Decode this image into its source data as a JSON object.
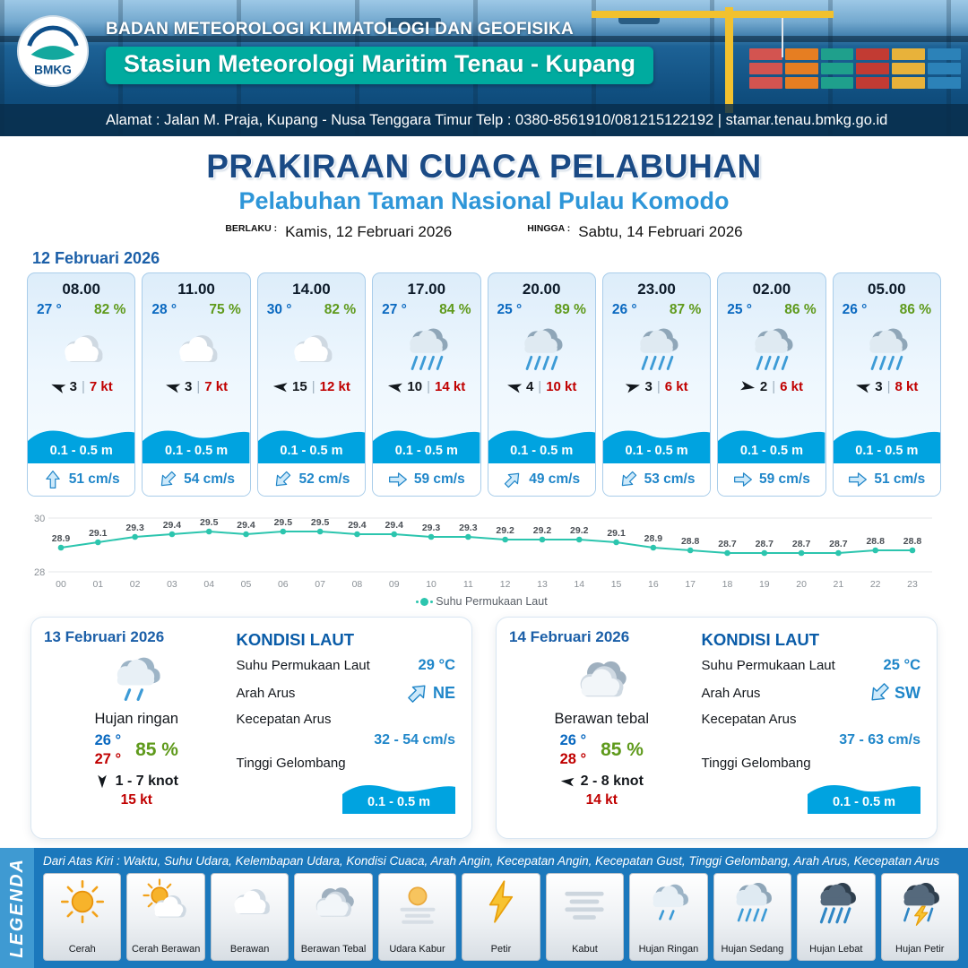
{
  "header": {
    "logo_text": "BMKG",
    "org": "BADAN METEOROLOGI KLIMATOLOGI DAN GEOFISIKA",
    "station": "Stasiun Meteorologi Maritim Tenau - Kupang",
    "address": "Alamat : Jalan M. Praja, Kupang - Nusa Tenggara Timur Telp : 0380-8561910/081215122192  | stamar.tenau.bmkg.go.id"
  },
  "title": {
    "main": "PRAKIRAAN CUACA PELABUHAN",
    "subtitle": "Pelabuhan Taman Nasional Pulau Komodo",
    "valid_from_label": "BERLAKU :",
    "valid_from": "Kamis, 12 Februari 2026",
    "valid_to_label": "HINGGA :",
    "valid_to": "Sabtu, 14 Februari 2026"
  },
  "forecast": {
    "date": "12 Februari 2026",
    "separator": "|",
    "cards": [
      {
        "time": "08.00",
        "temp": "27 °",
        "humidity": "82 %",
        "icon": "berawan",
        "wind_dir_deg": 200,
        "wind_speed": "3",
        "gust": "7 kt",
        "wave": "0.1 - 0.5 m",
        "current_dir_deg": -90,
        "current_speed": "51 cm/s"
      },
      {
        "time": "11.00",
        "temp": "28 °",
        "humidity": "75 %",
        "icon": "berawan",
        "wind_dir_deg": 195,
        "wind_speed": "3",
        "gust": "7 kt",
        "wave": "0.1 - 0.5 m",
        "current_dir_deg": 135,
        "current_speed": "54 cm/s"
      },
      {
        "time": "14.00",
        "temp": "30 °",
        "humidity": "82 %",
        "icon": "berawan",
        "wind_dir_deg": 185,
        "wind_speed": "15",
        "gust": "12 kt",
        "wave": "0.1 - 0.5 m",
        "current_dir_deg": 135,
        "current_speed": "52 cm/s"
      },
      {
        "time": "17.00",
        "temp": "27 °",
        "humidity": "84 %",
        "icon": "hujan-sedang",
        "wind_dir_deg": 190,
        "wind_speed": "10",
        "gust": "14 kt",
        "wave": "0.1 - 0.5 m",
        "current_dir_deg": 0,
        "current_speed": "59 cm/s"
      },
      {
        "time": "20.00",
        "temp": "25 °",
        "humidity": "89 %",
        "icon": "hujan-sedang",
        "wind_dir_deg": 195,
        "wind_speed": "4",
        "gust": "10 kt",
        "wave": "0.1 - 0.5 m",
        "current_dir_deg": -45,
        "current_speed": "49 cm/s"
      },
      {
        "time": "23.00",
        "temp": "26 °",
        "humidity": "87 %",
        "icon": "hujan-sedang",
        "wind_dir_deg": -15,
        "wind_speed": "3",
        "gust": "6 kt",
        "wave": "0.1 - 0.5 m",
        "current_dir_deg": 135,
        "current_speed": "53 cm/s"
      },
      {
        "time": "02.00",
        "temp": "25 °",
        "humidity": "86 %",
        "icon": "hujan-sedang",
        "wind_dir_deg": 10,
        "wind_speed": "2",
        "gust": "6 kt",
        "wave": "0.1 - 0.5 m",
        "current_dir_deg": 0,
        "current_speed": "59 cm/s"
      },
      {
        "time": "05.00",
        "temp": "26 °",
        "humidity": "86 %",
        "icon": "hujan-sedang",
        "wind_dir_deg": 195,
        "wind_speed": "3",
        "gust": "8 kt",
        "wave": "0.1 - 0.5 m",
        "current_dir_deg": 0,
        "current_speed": "51 cm/s"
      }
    ]
  },
  "chart_data": {
    "type": "line",
    "title": "",
    "xlabel": "",
    "ylabel": "",
    "x": [
      "00",
      "01",
      "02",
      "03",
      "04",
      "05",
      "06",
      "07",
      "08",
      "09",
      "10",
      "11",
      "12",
      "13",
      "14",
      "15",
      "16",
      "17",
      "18",
      "19",
      "20",
      "21",
      "22",
      "23"
    ],
    "series": [
      {
        "name": "Suhu Permukaan Laut",
        "values": [
          28.9,
          29.1,
          29.3,
          29.4,
          29.5,
          29.4,
          29.5,
          29.5,
          29.4,
          29.4,
          29.3,
          29.3,
          29.2,
          29.2,
          29.2,
          29.1,
          28.9,
          28.8,
          28.7,
          28.7,
          28.7,
          28.7,
          28.8,
          28.8
        ]
      }
    ],
    "ylim": [
      28,
      30
    ],
    "yticks": [
      28,
      30
    ],
    "line_color": "#2cc5ae",
    "legend_position": "bottom",
    "grid": true
  },
  "sea_labels": {
    "title": "KONDISI LAUT",
    "sst": "Suhu Permukaan Laut",
    "direction": "Arah Arus",
    "speed": "Kecepatan Arus",
    "wave": "Tinggi Gelombang"
  },
  "days": [
    {
      "date": "13 Februari 2026",
      "icon": "hujan-ringan",
      "condition": "Hujan ringan",
      "temp_min": "26 °",
      "temp_max": "27 °",
      "humidity": "85 %",
      "wind_dir_deg": 90,
      "wind_range": "1 - 7 knot",
      "gust": "15 kt",
      "sea": {
        "sst": "29 °C",
        "current_dir": "NE",
        "current_dir_deg": -45,
        "current_speed": "32 - 54 cm/s",
        "wave": "0.1 - 0.5 m"
      }
    },
    {
      "date": "14 Februari 2026",
      "icon": "berawan-tebal",
      "condition": "Berawan tebal",
      "temp_min": "26 °",
      "temp_max": "28 °",
      "humidity": "85 %",
      "wind_dir_deg": 185,
      "wind_range": "2 - 8 knot",
      "gust": "14 kt",
      "sea": {
        "sst": "25 °C",
        "current_dir": "SW",
        "current_dir_deg": 135,
        "current_speed": "37 - 63 cm/s",
        "wave": "0.1 - 0.5 m"
      }
    }
  ],
  "legend": {
    "title": "LEGENDA",
    "description": "Dari Atas Kiri : Waktu, Suhu Udara, Kelembapan Udara, Kondisi Cuaca, Arah Angin, Kecepatan Angin, Kecepatan Gust, Tinggi Gelombang, Arah Arus, Kecepatan Arus",
    "items": [
      {
        "label": "Cerah",
        "icon": "cerah"
      },
      {
        "label": "Cerah Berawan",
        "icon": "cerah-berawan"
      },
      {
        "label": "Berawan",
        "icon": "berawan"
      },
      {
        "label": "Berawan Tebal",
        "icon": "berawan-tebal"
      },
      {
        "label": "Udara Kabur",
        "icon": "udara-kabur"
      },
      {
        "label": "Petir",
        "icon": "petir"
      },
      {
        "label": "Kabut",
        "icon": "kabut"
      },
      {
        "label": "Hujan Ringan",
        "icon": "hujan-ringan"
      },
      {
        "label": "Hujan Sedang",
        "icon": "hujan-sedang"
      },
      {
        "label": "Hujan Lebat",
        "icon": "hujan-lebat"
      },
      {
        "label": "Hujan Petir",
        "icon": "hujan-petir"
      }
    ]
  },
  "colors": {
    "accent_blue": "#1b5fa8",
    "title_navy": "#1a4a85",
    "subtitle_blue": "#2e96d8",
    "temp_blue": "#0a69c0",
    "humidity_green": "#5f9a1c",
    "gust_red": "#c00000",
    "wave_blue": "#00a3e0",
    "station_teal": "#00ab9f",
    "chart_teal": "#2cc5ae",
    "legend_bar_blue": "#1b78bc"
  }
}
